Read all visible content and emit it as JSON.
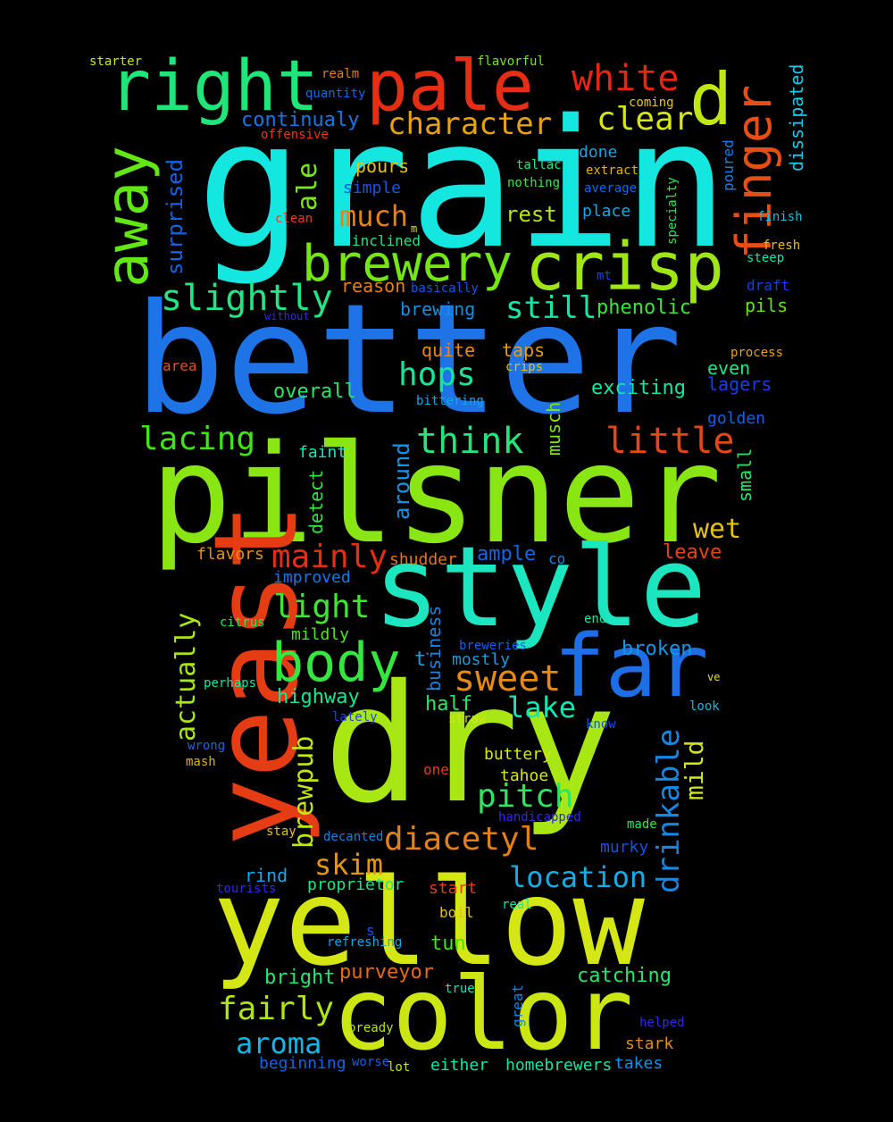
{
  "cloud": {
    "words": [
      {
        "text": "grain",
        "color": "#14e6e0"
      },
      {
        "text": "better",
        "color": "#1e74e6"
      },
      {
        "text": "pilsner",
        "color": "#8ae612"
      },
      {
        "text": "dry",
        "color": "#a8e614"
      },
      {
        "text": "yellow",
        "color": "#d4e614"
      },
      {
        "text": "style",
        "color": "#1ce6c0"
      },
      {
        "text": "color",
        "color": "#cce614"
      },
      {
        "text": "yeast",
        "color": "#e63c14"
      },
      {
        "text": "far",
        "color": "#1e6ee6"
      },
      {
        "text": "pale",
        "color": "#e62e14"
      },
      {
        "text": "right",
        "color": "#20e67a"
      },
      {
        "text": "crisp",
        "color": "#a0e614"
      },
      {
        "text": "away",
        "color": "#62e614"
      },
      {
        "text": "d",
        "color": "#c0e614"
      },
      {
        "text": "finger",
        "color": "#e64e14"
      },
      {
        "text": "brewery",
        "color": "#74e614"
      },
      {
        "text": "body",
        "color": "#34e63e"
      },
      {
        "text": "white",
        "color": "#e62614"
      },
      {
        "text": "character",
        "color": "#e6a214"
      },
      {
        "text": "clear",
        "color": "#d8e614"
      },
      {
        "text": "slightly",
        "color": "#22e684"
      },
      {
        "text": "think",
        "color": "#22e678"
      },
      {
        "text": "little",
        "color": "#e64614"
      },
      {
        "text": "sweet",
        "color": "#e68a14"
      },
      {
        "text": "diacetyl",
        "color": "#e68014"
      },
      {
        "text": "location",
        "color": "#14aee6"
      },
      {
        "text": "continualy",
        "color": "#1478e6"
      },
      {
        "text": "ale",
        "color": "#7ae614"
      },
      {
        "text": "much",
        "color": "#e68214"
      },
      {
        "text": "still",
        "color": "#14e6a8"
      },
      {
        "text": "lacing",
        "color": "#3ee614"
      },
      {
        "text": "hops",
        "color": "#14e6a0"
      },
      {
        "text": "mainly",
        "color": "#e62e14"
      },
      {
        "text": "light",
        "color": "#40e634"
      },
      {
        "text": "pitch",
        "color": "#2ae660"
      },
      {
        "text": "lake",
        "color": "#14e6b4"
      },
      {
        "text": "aroma",
        "color": "#14b6e6"
      },
      {
        "text": "fairly",
        "color": "#aee614"
      },
      {
        "text": "skim",
        "color": "#e69614"
      },
      {
        "text": "drinkable",
        "color": "#1488e6"
      },
      {
        "text": "wet",
        "color": "#e6c014"
      },
      {
        "text": "brewpub",
        "color": "#c0e614"
      },
      {
        "text": "actually",
        "color": "#a8e614"
      },
      {
        "text": "mild",
        "color": "#d4e614"
      },
      {
        "text": "surprised",
        "color": "#1462e6"
      },
      {
        "text": "rest",
        "color": "#b4e614"
      },
      {
        "text": "overall",
        "color": "#2ae66a"
      },
      {
        "text": "exciting",
        "color": "#14e6a8"
      },
      {
        "text": "phenolic",
        "color": "#38e63a"
      },
      {
        "text": "pours",
        "color": "#e6c014"
      },
      {
        "text": "brewing",
        "color": "#1490e6"
      },
      {
        "text": "quite",
        "color": "#e68c14"
      },
      {
        "text": "taps",
        "color": "#e69c14"
      },
      {
        "text": "place",
        "color": "#14a8e6"
      },
      {
        "text": "done",
        "color": "#14a4e6"
      },
      {
        "text": "reason",
        "color": "#e68014"
      },
      {
        "text": "inclined",
        "color": "#20e684"
      },
      {
        "text": "simple",
        "color": "#1456e6"
      },
      {
        "text": "pils",
        "color": "#60e614"
      },
      {
        "text": "lagers",
        "color": "#1c3ee6"
      },
      {
        "text": "golden",
        "color": "#1460e6"
      },
      {
        "text": "even",
        "color": "#22e680"
      },
      {
        "text": "small",
        "color": "#2ae664"
      },
      {
        "text": "faint",
        "color": "#14e6be"
      },
      {
        "text": "around",
        "color": "#1496e6"
      },
      {
        "text": "detect",
        "color": "#38e648"
      },
      {
        "text": "musch",
        "color": "#7ce614"
      },
      {
        "text": "ample",
        "color": "#1466e6"
      },
      {
        "text": "shudder",
        "color": "#e67414"
      },
      {
        "text": "flavors",
        "color": "#e69014"
      },
      {
        "text": "leave",
        "color": "#e64414"
      },
      {
        "text": "improved",
        "color": "#1478e6"
      },
      {
        "text": "co",
        "color": "#1486e6"
      },
      {
        "text": "mildly",
        "color": "#52e614"
      },
      {
        "text": "highway",
        "color": "#14e692"
      },
      {
        "text": "business",
        "color": "#1486e6"
      },
      {
        "text": "t",
        "color": "#14a2e6"
      },
      {
        "text": "mostly",
        "color": "#149ce6"
      },
      {
        "text": "broken",
        "color": "#1496e6"
      },
      {
        "text": "half",
        "color": "#2ae660"
      },
      {
        "text": "buttery",
        "color": "#d4e614"
      },
      {
        "text": "tahoe",
        "color": "#d4e614"
      },
      {
        "text": "murky",
        "color": "#1452e6"
      },
      {
        "text": "rind",
        "color": "#14a8e6"
      },
      {
        "text": "proprietor",
        "color": "#20e680"
      },
      {
        "text": "start",
        "color": "#e63c14"
      },
      {
        "text": "boil",
        "color": "#e6c014"
      },
      {
        "text": "tun",
        "color": "#3ce614"
      },
      {
        "text": "purveyor",
        "color": "#e66c14"
      },
      {
        "text": "bright",
        "color": "#22e672"
      },
      {
        "text": "catching",
        "color": "#26e670"
      },
      {
        "text": "great",
        "color": "#1486e6"
      },
      {
        "text": "stark",
        "color": "#e68a14"
      },
      {
        "text": "beginning",
        "color": "#1464e6"
      },
      {
        "text": "either",
        "color": "#14e6a8"
      },
      {
        "text": "homebrewers",
        "color": "#14e6a8"
      },
      {
        "text": "takes",
        "color": "#1490e6"
      },
      {
        "text": "starter",
        "color": "#c8e614"
      },
      {
        "text": "realm",
        "color": "#e67c14"
      },
      {
        "text": "quantity",
        "color": "#1468e6"
      },
      {
        "text": "offensive",
        "color": "#e63c14"
      },
      {
        "text": "flavorful",
        "color": "#7ae614"
      },
      {
        "text": "coming",
        "color": "#e6c814"
      },
      {
        "text": "dissipated",
        "color": "#14cae6"
      },
      {
        "text": "clean",
        "color": "#e63c14"
      },
      {
        "text": "m",
        "color": "#e6e014"
      },
      {
        "text": "tallac",
        "color": "#20e684"
      },
      {
        "text": "nothing",
        "color": "#3ae648"
      },
      {
        "text": "extract",
        "color": "#e6ae14"
      },
      {
        "text": "average",
        "color": "#1464e6"
      },
      {
        "text": "specialty",
        "color": "#2ee654"
      },
      {
        "text": "poured",
        "color": "#1480e6"
      },
      {
        "text": "finish",
        "color": "#14bee6"
      },
      {
        "text": "fresh",
        "color": "#e6c014"
      },
      {
        "text": "steep",
        "color": "#14e6aa"
      },
      {
        "text": "basically",
        "color": "#1456e6"
      },
      {
        "text": "mt",
        "color": "#1448e6"
      },
      {
        "text": "draft",
        "color": "#1440e6"
      },
      {
        "text": "without",
        "color": "#3428e6"
      },
      {
        "text": "area",
        "color": "#e65014"
      },
      {
        "text": "process",
        "color": "#e6a414"
      },
      {
        "text": "crips",
        "color": "#e6c014"
      },
      {
        "text": "bittering",
        "color": "#14a4e6"
      },
      {
        "text": "citrus",
        "color": "#2ae654"
      },
      {
        "text": "end",
        "color": "#14e6a6"
      },
      {
        "text": "breweries",
        "color": "#1460e6"
      },
      {
        "text": "ve",
        "color": "#e6e014"
      },
      {
        "text": "perhaps",
        "color": "#14e6a4"
      },
      {
        "text": "lately",
        "color": "#1c46e6"
      },
      {
        "text": "straw",
        "color": "#d4e614"
      },
      {
        "text": "look",
        "color": "#14b6e6"
      },
      {
        "text": "know",
        "color": "#1452e6"
      },
      {
        "text": "wrong",
        "color": "#1468e6"
      },
      {
        "text": "mash",
        "color": "#e6ae14"
      },
      {
        "text": "one",
        "color": "#e63c14"
      },
      {
        "text": "handicapped",
        "color": "#3428e6"
      },
      {
        "text": "made",
        "color": "#2ee654"
      },
      {
        "text": "stay",
        "color": "#e6c014"
      },
      {
        "text": "decanted",
        "color": "#1480e6"
      },
      {
        "text": "tourists",
        "color": "#3428e6"
      },
      {
        "text": "real",
        "color": "#14e6a4"
      },
      {
        "text": "s",
        "color": "#1456e6"
      },
      {
        "text": "refreshing",
        "color": "#14a4e6"
      },
      {
        "text": "true",
        "color": "#14e6be"
      },
      {
        "text": "bready",
        "color": "#b6e614"
      },
      {
        "text": "helped",
        "color": "#3428e6"
      },
      {
        "text": "worse",
        "color": "#1460e6"
      },
      {
        "text": "lot",
        "color": "#c0e614"
      }
    ]
  }
}
